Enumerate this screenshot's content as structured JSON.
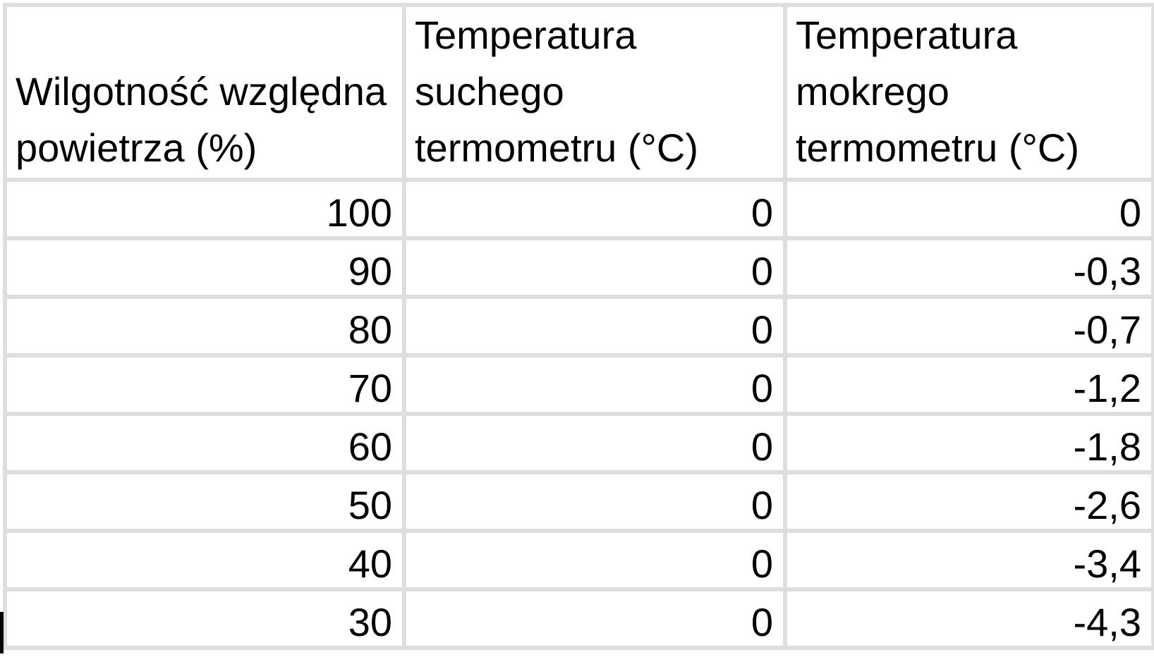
{
  "colors": {
    "grid_line": "#dedede",
    "text": "#000000",
    "background": "#ffffff",
    "caret": "#000000"
  },
  "chart_data": {
    "type": "table",
    "columns": [
      {
        "label": "Wilgotność względna powietrza (%)",
        "lines": [
          "Wilgotność względna",
          "powietrza (%)"
        ]
      },
      {
        "label": "Temperatura suchego termometru (°C)",
        "lines": [
          "Temperatura",
          "suchego",
          "termometru (°C)"
        ]
      },
      {
        "label": "Temperatura mokrego termometru (°C)",
        "lines": [
          "Temperatura",
          "mokrego",
          "termometru (°C)"
        ]
      }
    ],
    "rows": [
      [
        "100",
        "0",
        "0"
      ],
      [
        "90",
        "0",
        "-0,3"
      ],
      [
        "80",
        "0",
        "-0,7"
      ],
      [
        "70",
        "0",
        "-1,2"
      ],
      [
        "60",
        "0",
        "-1,8"
      ],
      [
        "50",
        "0",
        "-2,6"
      ],
      [
        "40",
        "0",
        "-3,4"
      ],
      [
        "30",
        "0",
        "-4,3"
      ]
    ],
    "layout_hints": {
      "header_alignment": "bottom-left",
      "value_alignment": "bottom-right",
      "decimal_separator": ","
    }
  }
}
